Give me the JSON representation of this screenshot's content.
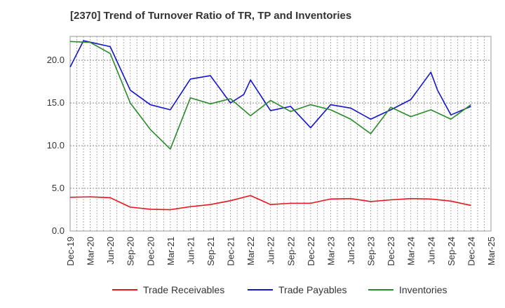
{
  "chart_data": {
    "type": "line",
    "title": "[2370]  Trend of Turnover Ratio of TR, TP and Inventories",
    "xlabel": "",
    "ylabel": "",
    "ylim": [
      0,
      22.8
    ],
    "yticks": [
      "0.0",
      "5.0",
      "10.0",
      "15.0",
      "20.0"
    ],
    "x_tick_labels": [
      "Dec-19",
      "Mar-20",
      "Jun-20",
      "Sep-20",
      "Dec-20",
      "Mar-21",
      "Jun-21",
      "Sep-21",
      "Dec-21",
      "Mar-22",
      "Jun-22",
      "Sep-22",
      "Dec-22",
      "Mar-23",
      "Jun-23",
      "Sep-23",
      "Dec-23",
      "Mar-24",
      "Jun-24",
      "Sep-24",
      "Dec-24",
      "Mar-25"
    ],
    "grid": true,
    "legend_position": "bottom",
    "series": [
      {
        "name": "Trade Receivables",
        "color": "#e8141e",
        "points": [
          [
            "Dec-19",
            3.95
          ],
          [
            "Mar-20",
            4.0
          ],
          [
            "Jun-20",
            3.9
          ],
          [
            "Sep-20",
            2.8
          ],
          [
            "Dec-20",
            2.55
          ],
          [
            "Mar-21",
            2.5
          ],
          [
            "Jun-21",
            2.85
          ],
          [
            "Sep-21",
            3.1
          ],
          [
            "Dec-21",
            3.55
          ],
          [
            "Mar-22",
            4.15
          ],
          [
            "Jun-22",
            3.1
          ],
          [
            "Sep-22",
            3.25
          ],
          [
            "Dec-22",
            3.25
          ],
          [
            "Mar-23",
            3.75
          ],
          [
            "Jun-23",
            3.8
          ],
          [
            "Sep-23",
            3.45
          ],
          [
            "Dec-23",
            3.65
          ],
          [
            "Mar-24",
            3.8
          ],
          [
            "Jun-24",
            3.75
          ],
          [
            "Sep-24",
            3.5
          ],
          [
            "Dec-24",
            3.0
          ]
        ]
      },
      {
        "name": "Trade Payables",
        "color": "#1414d2",
        "points": [
          [
            "Dec-19",
            19.2
          ],
          [
            "Feb-20",
            22.3
          ],
          [
            "Jun-20",
            21.6
          ],
          [
            "Sep-20",
            16.5
          ],
          [
            "Dec-20",
            14.8
          ],
          [
            "Mar-21",
            14.2
          ],
          [
            "Jun-21",
            17.8
          ],
          [
            "Sep-21",
            18.2
          ],
          [
            "Dec-21",
            15.0
          ],
          [
            "Feb-22",
            16.0
          ],
          [
            "Mar-22",
            17.7
          ],
          [
            "Jun-22",
            14.1
          ],
          [
            "Sep-22",
            14.6
          ],
          [
            "Dec-22",
            12.1
          ],
          [
            "Mar-23",
            14.8
          ],
          [
            "Jun-23",
            14.4
          ],
          [
            "Sep-23",
            13.1
          ],
          [
            "Dec-23",
            14.2
          ],
          [
            "Mar-24",
            15.4
          ],
          [
            "Jun-24",
            18.6
          ],
          [
            "Jul-24",
            16.5
          ],
          [
            "Sep-24",
            13.6
          ],
          [
            "Dec-24",
            14.6
          ]
        ]
      },
      {
        "name": "Inventories",
        "color": "#2a8a2a",
        "points": [
          [
            "Dec-19",
            22.2
          ],
          [
            "Mar-20",
            22.1
          ],
          [
            "Jun-20",
            20.8
          ],
          [
            "Sep-20",
            15.0
          ],
          [
            "Dec-20",
            11.9
          ],
          [
            "Mar-21",
            9.6
          ],
          [
            "Jun-21",
            15.6
          ],
          [
            "Sep-21",
            14.9
          ],
          [
            "Dec-21",
            15.5
          ],
          [
            "Mar-22",
            13.5
          ],
          [
            "Jun-22",
            15.3
          ],
          [
            "Sep-22",
            14.0
          ],
          [
            "Dec-22",
            14.8
          ],
          [
            "Mar-23",
            14.2
          ],
          [
            "Jun-23",
            13.1
          ],
          [
            "Sep-23",
            11.4
          ],
          [
            "Dec-23",
            14.5
          ],
          [
            "Mar-24",
            13.4
          ],
          [
            "Jun-24",
            14.2
          ],
          [
            "Sep-24",
            13.1
          ],
          [
            "Dec-24",
            14.8
          ]
        ]
      }
    ]
  }
}
